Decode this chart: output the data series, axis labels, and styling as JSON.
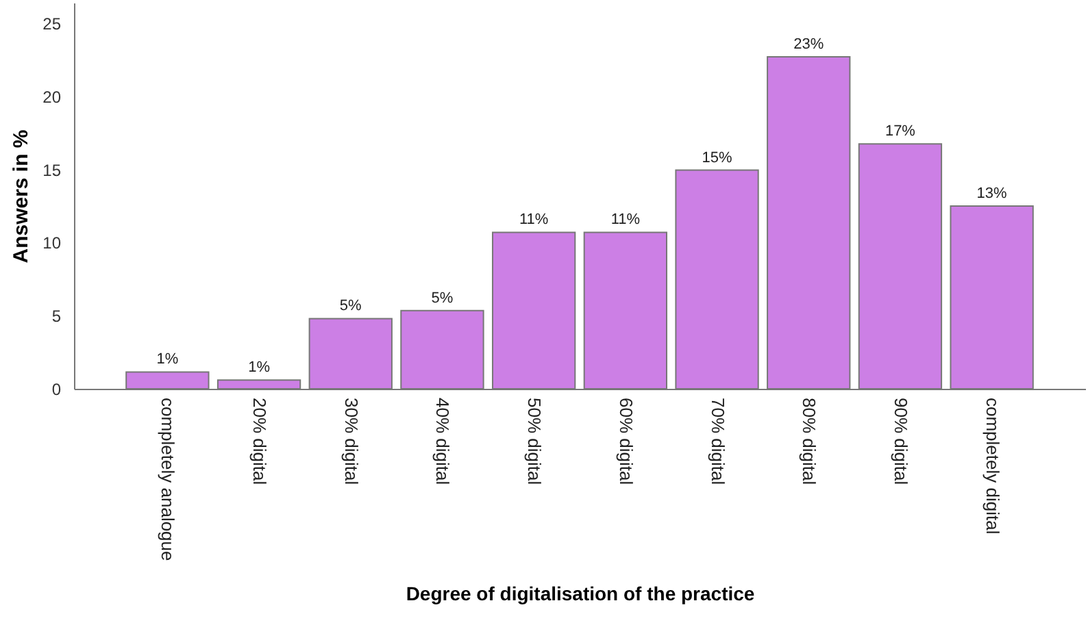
{
  "chart_data": {
    "type": "bar",
    "xlabel": "Degree of digitalisation of the practice",
    "ylabel": "Answers in %",
    "categories": [
      "completely analogue",
      "20% digital",
      "30% digital",
      "40% digital",
      "50% digital",
      "60% digital",
      "70% digital",
      "80% digital",
      "90% digital",
      "completely digital"
    ],
    "values": [
      1.15,
      0.6,
      4.8,
      5.35,
      10.7,
      10.7,
      14.95,
      22.7,
      16.75,
      12.5
    ],
    "value_labels": [
      "1%",
      "1%",
      "5%",
      "5%",
      "11%",
      "11%",
      "15%",
      "23%",
      "17%",
      "13%"
    ],
    "color": "#cc7fe5",
    "ylim": [
      0,
      26.4
    ],
    "yticks": [
      0,
      5,
      10,
      15,
      20,
      25
    ],
    "grid": false
  }
}
